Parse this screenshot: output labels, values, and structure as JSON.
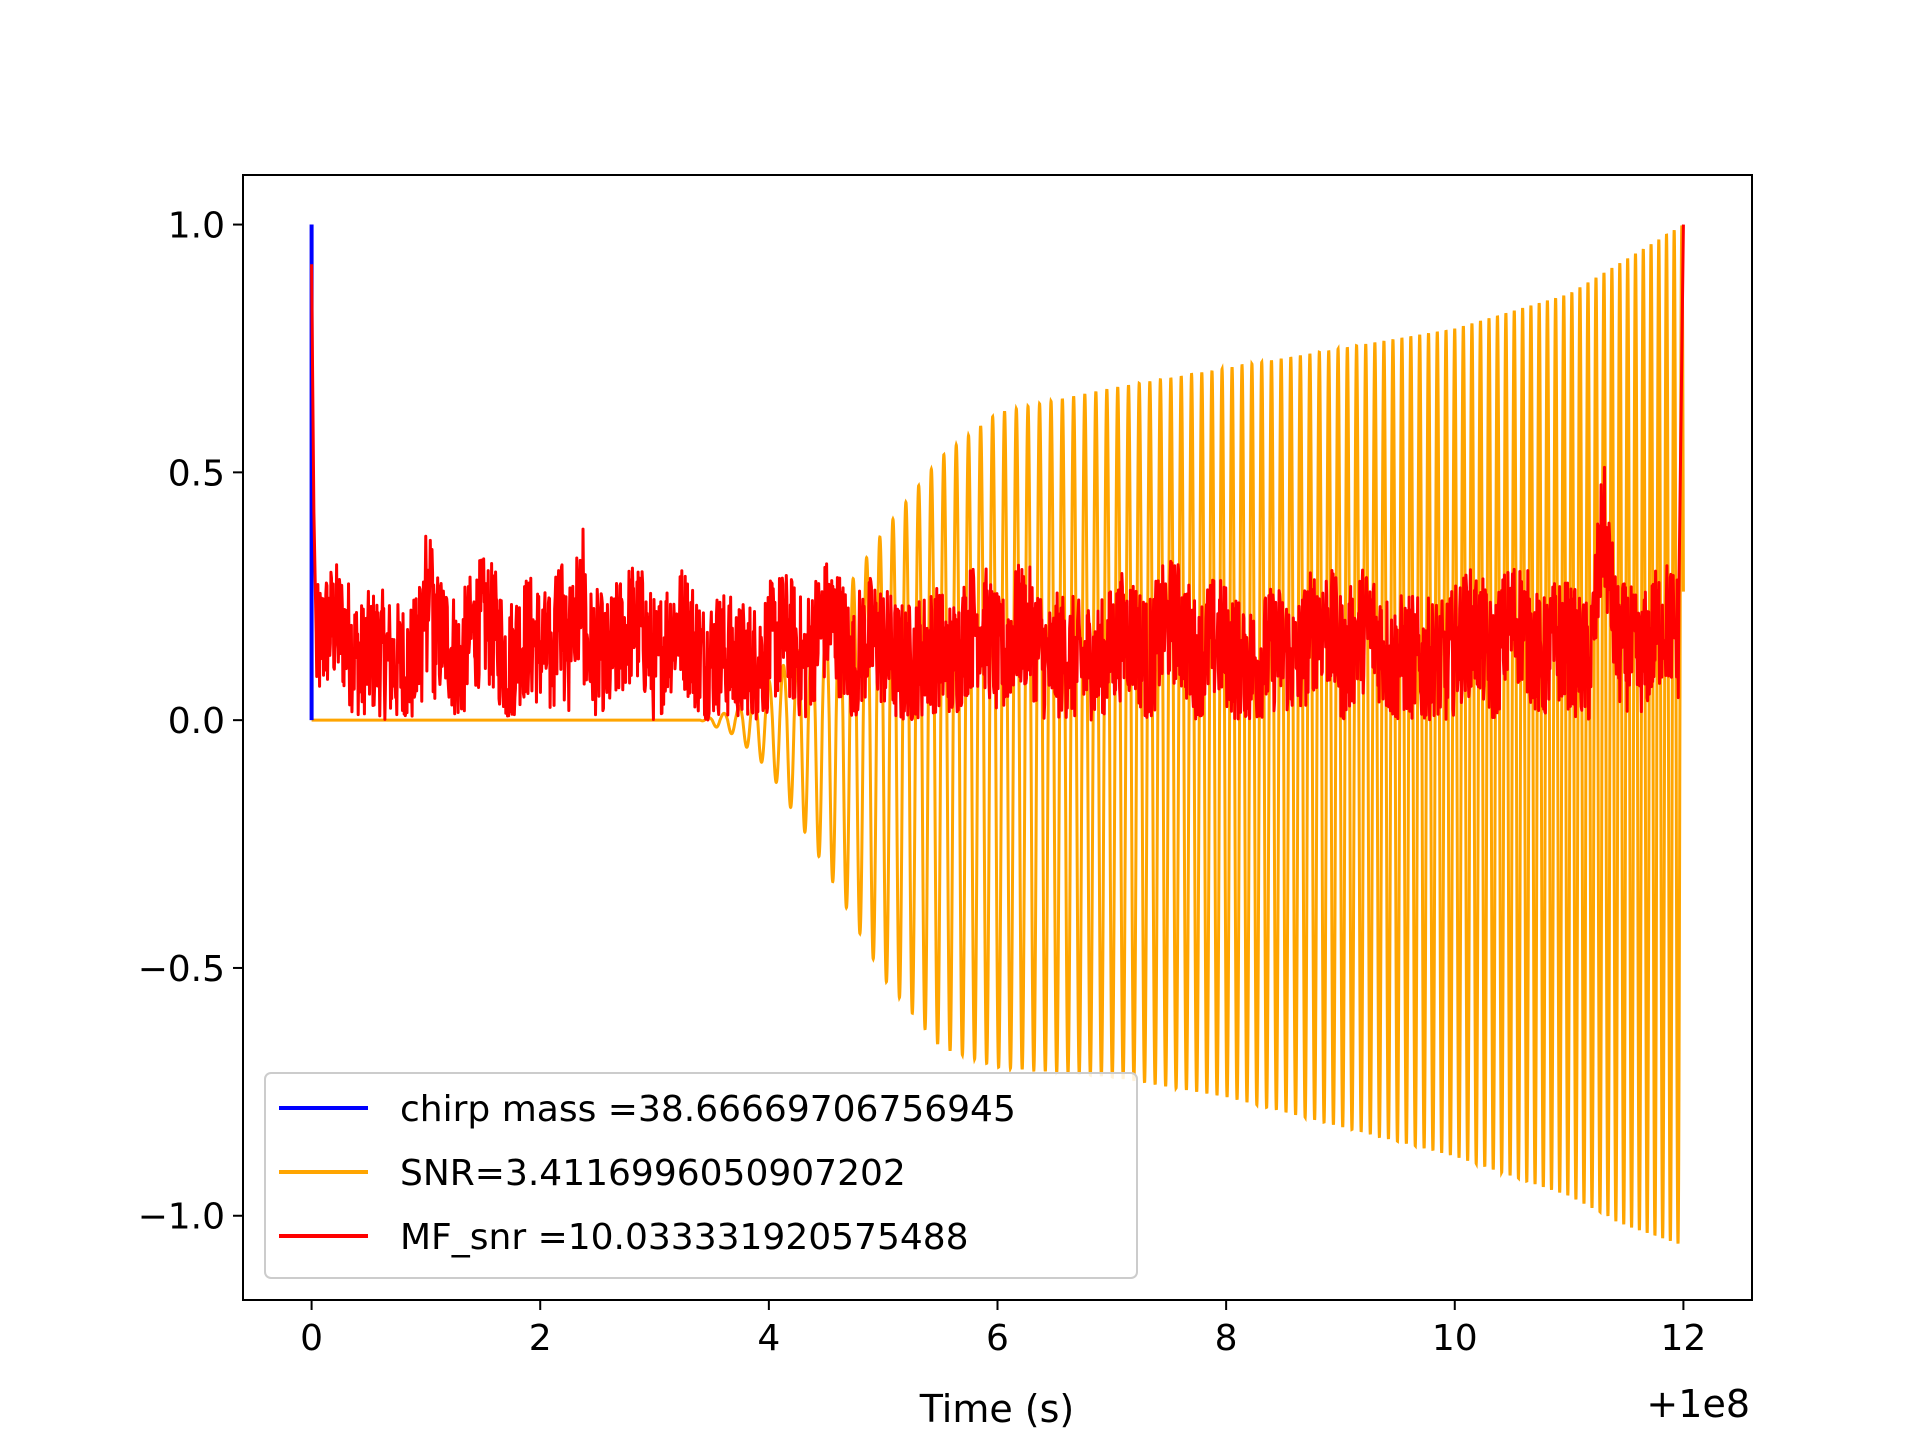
{
  "chart_data": {
    "type": "line",
    "title": "",
    "xlabel": "Time (s)",
    "ylabel": "",
    "x_offset_label": "+1e8",
    "xlim": [
      -0.6,
      12.6
    ],
    "ylim": [
      -1.17,
      1.1
    ],
    "xticks": [
      0,
      2,
      4,
      6,
      8,
      10,
      12
    ],
    "xtick_labels": [
      "0",
      "2",
      "4",
      "6",
      "8",
      "10",
      "12"
    ],
    "yticks": [
      1.0,
      0.5,
      0.0,
      -0.5,
      -1.0
    ],
    "ytick_labels": [
      "1.0",
      "0.5",
      "0.0",
      "−0.5",
      "−1.0"
    ],
    "grid": false,
    "legend_position": "lower-left",
    "series": [
      {
        "name": "chirp mass =38.66669706756945",
        "color": "#0000ff",
        "description_points": [
          [
            0.0,
            0.0
          ],
          [
            0.0,
            1.0
          ],
          [
            0.0,
            0.0
          ]
        ]
      },
      {
        "name": "SNR=3.4116996050907202",
        "color": "#ffa500",
        "envelope": {
          "x": [
            0,
            3.4,
            3.7,
            4.0,
            4.5,
            5.0,
            5.5,
            6.0,
            7.0,
            8.0,
            9.0,
            10.0,
            11.0,
            11.5,
            12.0
          ],
          "upper": [
            0,
            0,
            0.02,
            0.08,
            0.2,
            0.38,
            0.53,
            0.62,
            0.67,
            0.71,
            0.75,
            0.79,
            0.86,
            0.93,
            1.0
          ],
          "lower": [
            0,
            0,
            -0.03,
            -0.1,
            -0.3,
            -0.52,
            -0.66,
            -0.7,
            -0.72,
            -0.76,
            -0.82,
            -0.88,
            -0.96,
            -1.02,
            -1.06
          ]
        }
      },
      {
        "name": "MF_snr =10.033331920575488",
        "color": "#ff0000",
        "notable_points": [
          [
            0.0,
            0.92
          ],
          [
            0.05,
            0.2
          ],
          [
            1.0,
            0.38
          ],
          [
            2.2,
            0.38
          ],
          [
            11.3,
            0.49
          ],
          [
            12.0,
            1.0
          ]
        ],
        "baseline_range": [
          0.0,
          0.32
        ]
      }
    ]
  },
  "legend": {
    "items": [
      {
        "label": "chirp mass =38.66669706756945",
        "color": "#0000ff"
      },
      {
        "label": "SNR=3.4116996050907202",
        "color": "#ffa500"
      },
      {
        "label": "MF_snr =10.033331920575488",
        "color": "#ff0000"
      }
    ]
  }
}
